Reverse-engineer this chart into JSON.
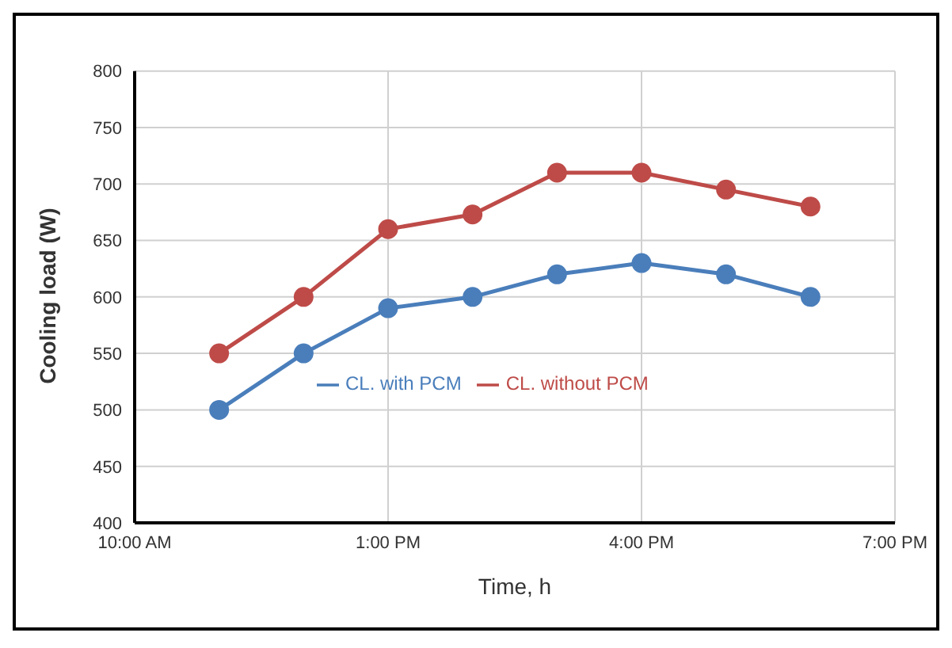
{
  "chart_data": {
    "type": "line",
    "xlabel": "Time, h",
    "ylabel": "Cooling load (W)",
    "x": [
      11,
      12,
      13,
      14,
      15,
      16,
      17,
      18
    ],
    "series": [
      {
        "name": "CL. with PCM",
        "color": "#4a7ebb",
        "values": [
          500,
          550,
          590,
          600,
          620,
          630,
          620,
          600
        ]
      },
      {
        "name": "CL. without PCM",
        "color": "#be4b48",
        "values": [
          550,
          600,
          660,
          673,
          710,
          710,
          695,
          680
        ]
      }
    ],
    "xlim": [
      10,
      19
    ],
    "xticks": [
      {
        "value": 10,
        "label": "10:00 AM"
      },
      {
        "value": 13,
        "label": "1:00 PM"
      },
      {
        "value": 16,
        "label": "4:00 PM"
      },
      {
        "value": 19,
        "label": "7:00 PM"
      }
    ],
    "ylim": [
      400,
      800
    ],
    "yticks": [
      400,
      450,
      500,
      550,
      600,
      650,
      700,
      750,
      800
    ],
    "grid": true,
    "legend": "center",
    "marker": "circle",
    "line_style": "solid"
  }
}
